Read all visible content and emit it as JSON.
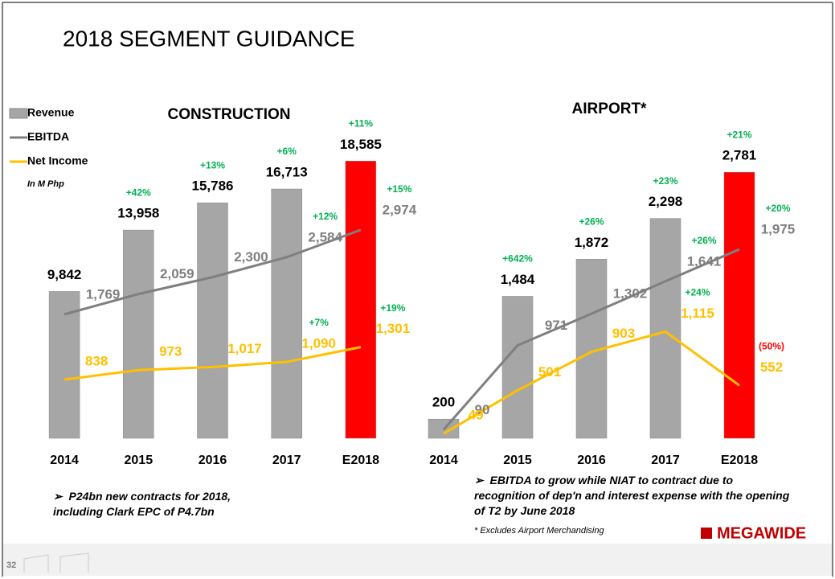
{
  "title": "2018 SEGMENT GUIDANCE",
  "legend_unit": "In M Php",
  "notes": {
    "construction": "P24bn new contracts for 2018, including Clark EPC of P4.7bn",
    "airport": "EBITDA to grow while NIAT to contract due to recognition of dep'n and interest expense with the opening of T2 by June 2018"
  },
  "footnote": "* Excludes Airport Merchandising",
  "page_number": "32",
  "logo": "MEGAWIDE",
  "label_colors": {
    "positive": "#00b050",
    "negative": "#ff0000"
  },
  "chart_data": [
    {
      "type": "combo",
      "title": "CONSTRUCTION",
      "categories": [
        "2014",
        "2015",
        "2016",
        "2017",
        "E2018"
      ],
      "ylim": [
        0,
        18600
      ],
      "y2lim": [
        0,
        3960
      ],
      "series": [
        {
          "name": "Revenue",
          "type": "bar",
          "color": "#a6a6a6",
          "colors": [
            "#a6a6a6",
            "#a6a6a6",
            "#a6a6a6",
            "#a6a6a6",
            "#ff0000"
          ],
          "label_color": "#000000",
          "values": [
            9842,
            13958,
            15786,
            16713,
            18585
          ],
          "value_labels": [
            "9,842",
            "13,958",
            "15,786",
            "16,713",
            "18,585"
          ],
          "growth_labels": [
            null,
            "+42%",
            "+13%",
            "+6%",
            "+11%"
          ]
        },
        {
          "name": "EBITDA",
          "type": "line",
          "axis": "y2",
          "color": "#7f7f7f",
          "label_color": "#7f7f7f",
          "values": [
            1769,
            2059,
            2300,
            2584,
            2974
          ],
          "value_labels": [
            "1,769",
            "2,059",
            "2,300",
            "2,584",
            "2,974"
          ],
          "growth_labels": [
            null,
            null,
            null,
            "+12%",
            "+15%"
          ]
        },
        {
          "name": "Net Income",
          "type": "line",
          "axis": "y2",
          "color": "#ffc000",
          "label_color": "#ffc000",
          "values": [
            838,
            973,
            1017,
            1090,
            1301
          ],
          "value_labels": [
            "838",
            "973",
            "1,017",
            "1,090",
            "1,301"
          ],
          "growth_labels": [
            null,
            null,
            null,
            "+7%",
            "+19%"
          ]
        }
      ]
    },
    {
      "type": "combo",
      "title": "AIRPORT*",
      "categories": [
        "2014",
        "2015",
        "2016",
        "2017",
        "E2018"
      ],
      "ylim": [
        0,
        2900
      ],
      "series": [
        {
          "type": "bar",
          "color": "#a6a6a6",
          "colors": [
            "#a6a6a6",
            "#a6a6a6",
            "#a6a6a6",
            "#a6a6a6",
            "#ff0000"
          ],
          "label_color": "#000000",
          "values": [
            200,
            1484,
            1872,
            2298,
            2781
          ],
          "value_labels": [
            "200",
            "1,484",
            "1,872",
            "2,298",
            "2,781"
          ],
          "growth_labels": [
            null,
            "+642%",
            "+26%",
            "+23%",
            "+21%"
          ]
        },
        {
          "type": "line",
          "color": "#7f7f7f",
          "label_color": "#7f7f7f",
          "values": [
            90,
            971,
            1302,
            1641,
            1975
          ],
          "value_labels": [
            "90",
            "971",
            "1,302",
            "1,641",
            "1,975"
          ],
          "growth_labels": [
            null,
            null,
            null,
            "+26%",
            "+20%"
          ]
        },
        {
          "type": "line",
          "color": "#ffc000",
          "label_color": "#ffc000",
          "values": [
            49,
            501,
            903,
            1115,
            552
          ],
          "value_labels": [
            "49",
            "501",
            "903",
            "1,115",
            "552"
          ],
          "growth_labels": [
            null,
            null,
            null,
            "+24%",
            "(50%)"
          ]
        }
      ]
    }
  ]
}
